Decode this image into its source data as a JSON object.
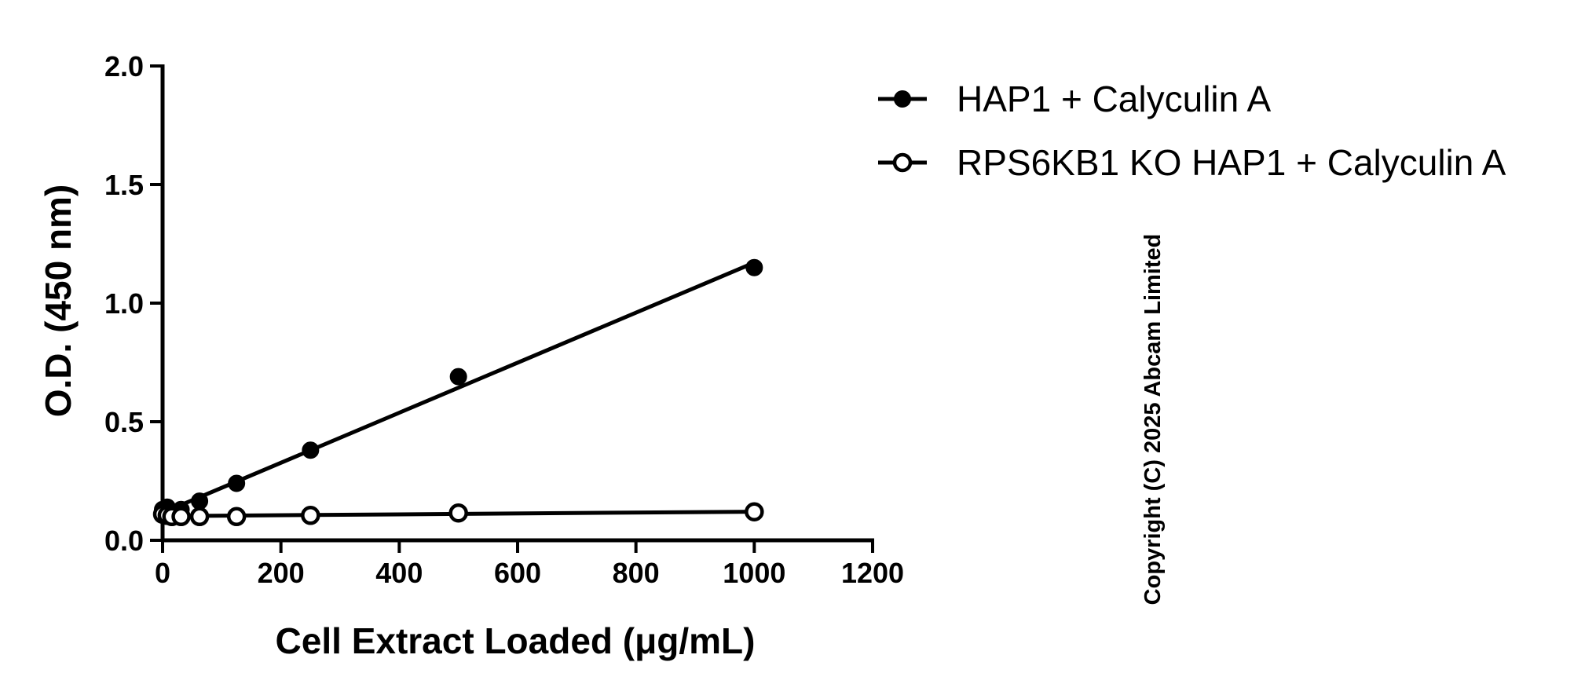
{
  "chart_data": {
    "type": "line",
    "xlabel": "Cell Extract Loaded (μg/mL)",
    "ylabel": "O.D. (450 nm)",
    "xlim": [
      0,
      1200
    ],
    "ylim": [
      0,
      2.0
    ],
    "x_ticks": [
      "0",
      "200",
      "400",
      "600",
      "800",
      "1000",
      "1200"
    ],
    "y_ticks": [
      "0.0",
      "0.5",
      "1.0",
      "1.5",
      "2.0"
    ],
    "grid": false,
    "legend_position": "top-right",
    "series": [
      {
        "name": "HAP1 + Calyculin A",
        "marker": "filled-circle",
        "color": "#000000",
        "x": [
          0,
          7.8,
          15.6,
          31.25,
          62.5,
          125,
          250,
          500,
          1000
        ],
        "y": [
          0.13,
          0.14,
          0.12,
          0.13,
          0.165,
          0.24,
          0.38,
          0.69,
          1.15
        ]
      },
      {
        "name": "RPS6KB1 KO HAP1 + Calyculin A",
        "marker": "open-circle",
        "color": "#000000",
        "x": [
          0,
          7.8,
          15.6,
          31.25,
          62.5,
          125,
          250,
          500,
          1000
        ],
        "y": [
          0.11,
          0.105,
          0.1,
          0.1,
          0.1,
          0.1,
          0.105,
          0.115,
          0.12
        ]
      }
    ]
  },
  "copyright": "Copyright (C) 2025 Abcam Limited"
}
